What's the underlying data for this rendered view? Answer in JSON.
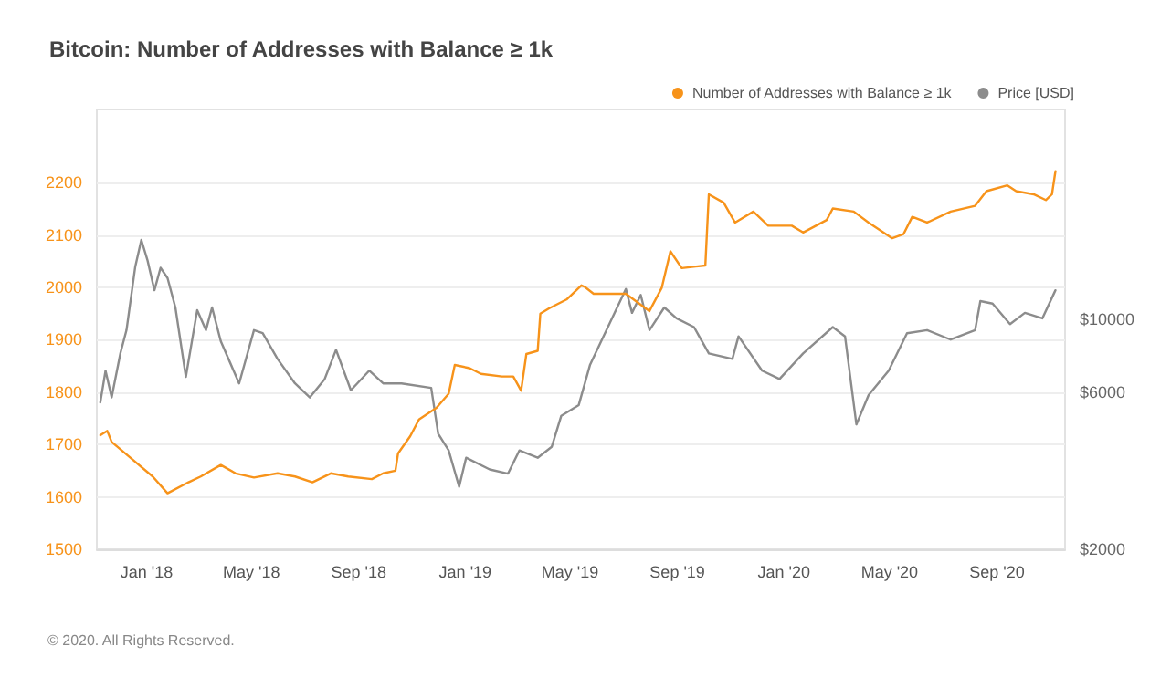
{
  "chart_data": {
    "type": "line",
    "title": "Bitcoin: Number of Addresses with Balance ≥ 1k",
    "annotations": [
      "© 2020. All Rights Reserved."
    ],
    "xlim": [
      "2017-11-05",
      "2020-11-18"
    ],
    "xticks": [
      {
        "value": "2018-01-01",
        "label": "Jan '18"
      },
      {
        "value": "2018-05-01",
        "label": "May '18"
      },
      {
        "value": "2018-09-01",
        "label": "Sep '18"
      },
      {
        "value": "2019-01-01",
        "label": "Jan '19"
      },
      {
        "value": "2019-05-01",
        "label": "May '19"
      },
      {
        "value": "2019-09-01",
        "label": "Sep '19"
      },
      {
        "value": "2020-01-01",
        "label": "Jan '20"
      },
      {
        "value": "2020-05-01",
        "label": "May '20"
      },
      {
        "value": "2020-09-01",
        "label": "Sep '20"
      }
    ],
    "ylim": [
      1500,
      2340
    ],
    "yticks": [
      1500,
      1600,
      1700,
      1800,
      1900,
      2000,
      2100,
      2200
    ],
    "log": "y2",
    "y2lim": [
      2000,
      43700
    ],
    "y2ticks": [
      {
        "value": 2000,
        "label": "$2000"
      },
      {
        "value": 6000,
        "label": "$6000"
      },
      {
        "value": 10000,
        "label": "$10000"
      }
    ],
    "grid": "y",
    "legend": "top right",
    "marker": "none",
    "line_style": "solid",
    "series": [
      {
        "name": "Number of Addresses with Balance ≥ 1k",
        "color": "#f7931a",
        "x": [
          "2017-11-09",
          "2017-11-17",
          "2017-11-22",
          "2017-12-19",
          "2018-01-08",
          "2018-01-25",
          "2018-02-18",
          "2018-03-04",
          "2018-03-27",
          "2018-04-13",
          "2018-05-04",
          "2018-05-31",
          "2018-06-20",
          "2018-07-10",
          "2018-07-31",
          "2018-08-20",
          "2018-09-16",
          "2018-09-29",
          "2018-10-13",
          "2018-10-16",
          "2018-10-30",
          "2018-11-09",
          "2018-11-29",
          "2018-12-13",
          "2018-12-20",
          "2019-01-06",
          "2019-01-19",
          "2019-02-12",
          "2019-02-25",
          "2019-03-06",
          "2019-03-12",
          "2019-03-25",
          "2019-03-28",
          "2019-04-07",
          "2019-04-27",
          "2019-05-14",
          "2019-05-18",
          "2019-05-28",
          "2019-07-04",
          "2019-07-31",
          "2019-08-14",
          "2019-08-24",
          "2019-09-06",
          "2019-10-03",
          "2019-10-07",
          "2019-10-24",
          "2019-11-06",
          "2019-11-27",
          "2019-12-14",
          "2020-01-10",
          "2020-01-23",
          "2020-02-19",
          "2020-02-26",
          "2020-03-21",
          "2020-04-07",
          "2020-05-04",
          "2020-05-17",
          "2020-05-27",
          "2020-06-13",
          "2020-07-10",
          "2020-08-07",
          "2020-08-20",
          "2020-09-13",
          "2020-09-23",
          "2020-10-13",
          "2020-10-27",
          "2020-11-03",
          "2020-11-07"
        ],
        "values": [
          1718,
          1726,
          1705,
          1667,
          1639,
          1607,
          1628,
          1639,
          1661,
          1645,
          1637,
          1645,
          1639,
          1628,
          1645,
          1639,
          1634,
          1645,
          1650,
          1683,
          1716,
          1748,
          1770,
          1797,
          1852,
          1846,
          1835,
          1830,
          1830,
          1803,
          1873,
          1879,
          1950,
          1960,
          1977,
          2004,
          2001,
          1988,
          1988,
          1955,
          1999,
          2069,
          2037,
          2042,
          2178,
          2162,
          2124,
          2145,
          2118,
          2118,
          2105,
          2129,
          2151,
          2145,
          2124,
          2094,
          2102,
          2135,
          2124,
          2145,
          2156,
          2184,
          2195,
          2184,
          2178,
          2167,
          2178,
          2222
        ]
      },
      {
        "name": "Price [USD]",
        "color": "#8c8c8c",
        "axis": "y2",
        "x": [
          "2017-11-09",
          "2017-11-15",
          "2017-11-22",
          "2017-12-02",
          "2017-12-09",
          "2017-12-19",
          "2017-12-26",
          "2018-01-02",
          "2018-01-10",
          "2018-01-17",
          "2018-01-25",
          "2018-02-03",
          "2018-02-15",
          "2018-02-28",
          "2018-03-10",
          "2018-03-17",
          "2018-03-27",
          "2018-04-17",
          "2018-05-04",
          "2018-05-14",
          "2018-05-31",
          "2018-06-20",
          "2018-07-07",
          "2018-07-24",
          "2018-08-06",
          "2018-08-23",
          "2018-09-13",
          "2018-09-29",
          "2018-10-20",
          "2018-11-23",
          "2018-12-01",
          "2018-12-13",
          "2018-12-25",
          "2019-01-02",
          "2019-01-29",
          "2019-02-19",
          "2019-03-04",
          "2019-03-25",
          "2019-04-10",
          "2019-04-21",
          "2019-05-11",
          "2019-05-24",
          "2019-07-04",
          "2019-07-11",
          "2019-07-21",
          "2019-07-31",
          "2019-08-17",
          "2019-08-31",
          "2019-09-20",
          "2019-10-07",
          "2019-11-03",
          "2019-11-10",
          "2019-12-07",
          "2019-12-27",
          "2020-01-23",
          "2020-02-26",
          "2020-03-11",
          "2020-03-24",
          "2020-04-07",
          "2020-04-30",
          "2020-05-21",
          "2020-06-13",
          "2020-07-10",
          "2020-08-07",
          "2020-08-13",
          "2020-08-27",
          "2020-09-16",
          "2020-10-03",
          "2020-10-23",
          "2020-11-07"
        ],
        "values": [
          5600,
          7000,
          5800,
          7900,
          9300,
          14500,
          17500,
          15200,
          12300,
          14400,
          13400,
          10900,
          6700,
          10700,
          9300,
          10900,
          8600,
          6400,
          9300,
          9100,
          7600,
          6400,
          5800,
          6600,
          8100,
          6100,
          7000,
          6400,
          6400,
          6200,
          4500,
          4000,
          3100,
          3800,
          3500,
          3400,
          4000,
          3800,
          4100,
          5100,
          5500,
          7300,
          12400,
          10500,
          11900,
          9300,
          10900,
          10100,
          9500,
          7900,
          7600,
          8900,
          7000,
          6600,
          7900,
          9500,
          8900,
          4800,
          5900,
          7000,
          9100,
          9300,
          8700,
          9300,
          11400,
          11200,
          9700,
          10500,
          10100,
          12300
        ]
      }
    ]
  }
}
